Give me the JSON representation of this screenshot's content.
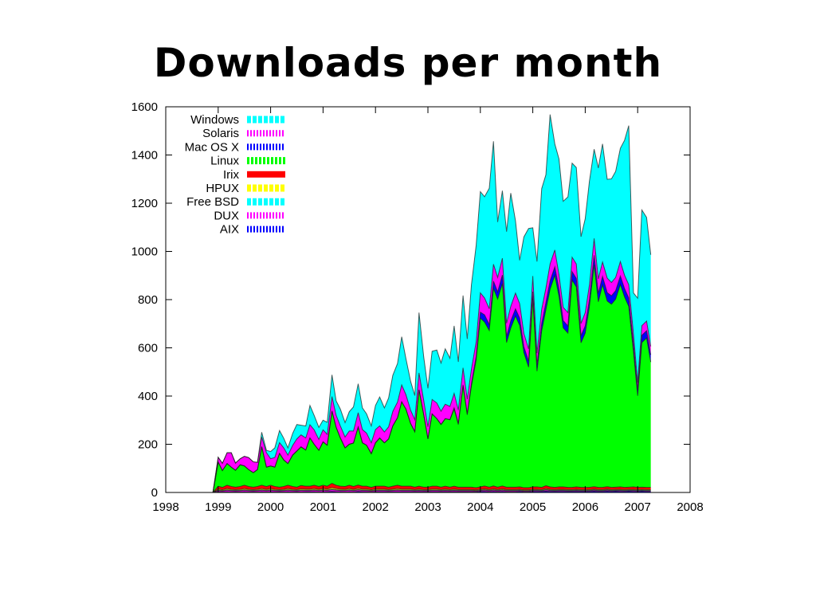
{
  "slide": {
    "title": "Downloads per month"
  },
  "chart_data": {
    "type": "area",
    "stacked": true,
    "title": "",
    "xlabel": "",
    "ylabel": "",
    "xlim": [
      1998,
      2008
    ],
    "ylim": [
      0,
      1600
    ],
    "x_ticks": [
      "1998",
      "1999",
      "2000",
      "2001",
      "2002",
      "2003",
      "2004",
      "2005",
      "2006",
      "2007",
      "2008"
    ],
    "y_ticks": [
      "0",
      "200",
      "400",
      "600",
      "800",
      "1000",
      "1200",
      "1400",
      "1600"
    ],
    "grid": false,
    "legend_position": "top-left",
    "x": [
      1998.9,
      1999.0,
      1999.08,
      1999.17,
      1999.25,
      1999.33,
      1999.42,
      1999.5,
      1999.58,
      1999.67,
      1999.75,
      1999.83,
      1999.92,
      2000.0,
      2000.08,
      2000.17,
      2000.25,
      2000.33,
      2000.42,
      2000.5,
      2000.58,
      2000.67,
      2000.75,
      2000.83,
      2000.92,
      2001.0,
      2001.08,
      2001.17,
      2001.25,
      2001.33,
      2001.42,
      2001.5,
      2001.58,
      2001.67,
      2001.75,
      2001.83,
      2001.92,
      2002.0,
      2002.08,
      2002.17,
      2002.25,
      2002.33,
      2002.42,
      2002.5,
      2002.58,
      2002.67,
      2002.75,
      2002.83,
      2002.92,
      2003.0,
      2003.08,
      2003.17,
      2003.25,
      2003.33,
      2003.42,
      2003.5,
      2003.58,
      2003.67,
      2003.75,
      2003.83,
      2003.92,
      2004.0,
      2004.08,
      2004.17,
      2004.25,
      2004.33,
      2004.42,
      2004.5,
      2004.58,
      2004.67,
      2004.75,
      2004.83,
      2004.92,
      2005.0,
      2005.08,
      2005.17,
      2005.25,
      2005.33,
      2005.42,
      2005.5,
      2005.58,
      2005.67,
      2005.75,
      2005.83,
      2005.92,
      2006.0,
      2006.08,
      2006.17,
      2006.25,
      2006.33,
      2006.42,
      2006.5,
      2006.58,
      2006.67,
      2006.75,
      2006.83,
      2006.92,
      2007.0,
      2007.08,
      2007.17,
      2007.25
    ],
    "series": [
      {
        "name": "AIX",
        "color": "#0000ff",
        "values": [
          0,
          3,
          2,
          3,
          2,
          3,
          2,
          3,
          2,
          3,
          2,
          3,
          2,
          3,
          2,
          3,
          2,
          3,
          2,
          3,
          2,
          3,
          3,
          3,
          2,
          3,
          3,
          4,
          3,
          3,
          2,
          3,
          2,
          4,
          3,
          3,
          2,
          3,
          3,
          3,
          3,
          3,
          3,
          3,
          3,
          3,
          3,
          3,
          3,
          3,
          3,
          3,
          3,
          3,
          3,
          3,
          3,
          3,
          3,
          3,
          3,
          4,
          4,
          3,
          4,
          3,
          4,
          3,
          3,
          3,
          4,
          3,
          3,
          4,
          4,
          4,
          5,
          4,
          4,
          4,
          4,
          4,
          4,
          4,
          4,
          4,
          4,
          5,
          4,
          4,
          5,
          4,
          5,
          4,
          4,
          5,
          4,
          4,
          5,
          4,
          4
        ]
      },
      {
        "name": "DUX",
        "color": "#ff00ff",
        "values": [
          0,
          5,
          4,
          6,
          5,
          4,
          5,
          6,
          5,
          4,
          5,
          6,
          5,
          6,
          5,
          4,
          5,
          6,
          5,
          4,
          6,
          5,
          5,
          6,
          5,
          6,
          5,
          7,
          6,
          5,
          5,
          6,
          5,
          6,
          5,
          5,
          4,
          5,
          5,
          5,
          4,
          5,
          6,
          5,
          5,
          5,
          4,
          5,
          4,
          4,
          5,
          5,
          4,
          5,
          4,
          5,
          4,
          4,
          4,
          4,
          3,
          4,
          5,
          4,
          5,
          4,
          5,
          4,
          4,
          4,
          4,
          3,
          3,
          4,
          4,
          3,
          5,
          4,
          3,
          4,
          4,
          3,
          3,
          4,
          3,
          3,
          3,
          4,
          3,
          3,
          4,
          3,
          3,
          4,
          3,
          3,
          4,
          3,
          3,
          3,
          3
        ]
      },
      {
        "name": "Free BSD",
        "color": "#00ffff",
        "values": [
          0,
          2,
          2,
          2,
          2,
          2,
          2,
          2,
          2,
          2,
          2,
          2,
          2,
          2,
          2,
          2,
          2,
          2,
          2,
          2,
          2,
          2,
          2,
          2,
          2,
          2,
          2,
          3,
          2,
          2,
          2,
          2,
          2,
          2,
          2,
          2,
          2,
          2,
          2,
          2,
          2,
          2,
          2,
          2,
          2,
          2,
          2,
          2,
          2,
          2,
          2,
          2,
          2,
          2,
          2,
          2,
          2,
          2,
          2,
          2,
          2,
          2,
          2,
          2,
          2,
          2,
          2,
          2,
          2,
          2,
          2,
          2,
          2,
          2,
          2,
          2,
          2,
          2,
          2,
          2,
          2,
          2,
          2,
          2,
          2,
          2,
          2,
          2,
          2,
          2,
          2,
          2,
          2,
          2,
          2,
          2,
          2,
          2,
          2,
          2,
          2
        ]
      },
      {
        "name": "HPUX",
        "color": "#ffff00",
        "values": [
          0,
          4,
          3,
          5,
          4,
          3,
          4,
          5,
          4,
          3,
          4,
          5,
          4,
          5,
          4,
          3,
          4,
          5,
          4,
          3,
          5,
          4,
          4,
          5,
          4,
          5,
          4,
          6,
          5,
          4,
          4,
          5,
          4,
          5,
          4,
          4,
          3,
          4,
          4,
          4,
          3,
          4,
          5,
          4,
          4,
          4,
          3,
          4,
          3,
          3,
          4,
          4,
          3,
          4,
          3,
          4,
          3,
          3,
          3,
          3,
          3,
          3,
          4,
          3,
          4,
          3,
          4,
          3,
          3,
          3,
          3,
          3,
          3,
          3,
          3,
          3,
          4,
          3,
          3,
          3,
          3,
          3,
          3,
          3,
          3,
          3,
          3,
          3,
          3,
          3,
          3,
          3,
          3,
          3,
          3,
          3,
          3,
          3,
          3,
          3,
          3
        ]
      },
      {
        "name": "Irix",
        "color": "#ff0000",
        "values": [
          0,
          12,
          10,
          14,
          12,
          10,
          12,
          14,
          12,
          10,
          12,
          14,
          12,
          14,
          12,
          10,
          12,
          14,
          12,
          10,
          14,
          12,
          12,
          14,
          12,
          14,
          12,
          18,
          14,
          12,
          12,
          14,
          12,
          14,
          12,
          12,
          10,
          12,
          12,
          12,
          10,
          12,
          14,
          12,
          12,
          12,
          10,
          12,
          10,
          10,
          12,
          12,
          10,
          12,
          10,
          12,
          10,
          10,
          10,
          10,
          9,
          10,
          12,
          10,
          12,
          10,
          12,
          10,
          10,
          10,
          10,
          9,
          9,
          10,
          10,
          9,
          12,
          10,
          9,
          10,
          10,
          9,
          9,
          10,
          9,
          9,
          9,
          10,
          9,
          9,
          10,
          9,
          9,
          10,
          9,
          9,
          10,
          9,
          9,
          9,
          9
        ]
      },
      {
        "name": "Linux",
        "color": "#00ff00",
        "values": [
          0,
          100,
          70,
          90,
          80,
          70,
          90,
          80,
          70,
          60,
          70,
          160,
          80,
          80,
          80,
          140,
          110,
          90,
          130,
          150,
          160,
          150,
          200,
          170,
          150,
          180,
          170,
          300,
          240,
          200,
          160,
          170,
          180,
          240,
          180,
          170,
          140,
          180,
          200,
          180,
          200,
          250,
          280,
          350,
          320,
          260,
          230,
          400,
          300,
          200,
          300,
          280,
          260,
          280,
          280,
          320,
          260,
          420,
          300,
          420,
          530,
          700,
          680,
          650,
          820,
          780,
          840,
          600,
          660,
          710,
          670,
          560,
          500,
          780,
          480,
          650,
          730,
          820,
          880,
          790,
          660,
          640,
          860,
          830,
          600,
          640,
          750,
          920,
          770,
          840,
          770,
          760,
          780,
          840,
          790,
          750,
          560,
          380,
          600,
          620,
          520
        ]
      },
      {
        "name": "Mac OS X",
        "color": "#0000ff",
        "values": [
          0,
          0,
          0,
          0,
          0,
          0,
          0,
          0,
          0,
          0,
          0,
          0,
          0,
          0,
          0,
          0,
          0,
          0,
          0,
          0,
          0,
          0,
          0,
          0,
          0,
          0,
          0,
          0,
          0,
          0,
          0,
          0,
          0,
          0,
          0,
          0,
          0,
          0,
          0,
          0,
          0,
          0,
          0,
          0,
          0,
          0,
          0,
          0,
          0,
          0,
          0,
          0,
          0,
          0,
          0,
          5,
          5,
          5,
          5,
          10,
          15,
          25,
          30,
          25,
          30,
          30,
          35,
          25,
          30,
          30,
          30,
          25,
          25,
          30,
          25,
          30,
          30,
          35,
          35,
          30,
          30,
          30,
          35,
          35,
          30,
          30,
          30,
          40,
          35,
          35,
          35,
          35,
          35,
          35,
          35,
          35,
          30,
          25,
          30,
          30,
          30
        ]
      },
      {
        "name": "Solaris",
        "color": "#ff00ff",
        "values": [
          0,
          20,
          30,
          45,
          60,
          30,
          25,
          40,
          50,
          45,
          30,
          40,
          60,
          30,
          40,
          45,
          50,
          35,
          40,
          50,
          50,
          50,
          55,
          60,
          45,
          50,
          45,
          60,
          50,
          50,
          45,
          55,
          50,
          60,
          55,
          50,
          45,
          55,
          50,
          45,
          50,
          60,
          65,
          70,
          60,
          55,
          50,
          70,
          60,
          50,
          60,
          65,
          55,
          60,
          55,
          60,
          55,
          70,
          60,
          60,
          60,
          80,
          70,
          65,
          70,
          60,
          70,
          55,
          60,
          65,
          60,
          55,
          50,
          65,
          50,
          60,
          60,
          70,
          70,
          60,
          55,
          55,
          60,
          60,
          50,
          55,
          60,
          70,
          60,
          60,
          60,
          55,
          55,
          60,
          55,
          55,
          45,
          30,
          40,
          40,
          35
        ]
      },
      {
        "name": "Windows",
        "color": "#00ffff",
        "values": [
          0,
          0,
          0,
          0,
          0,
          0,
          0,
          0,
          0,
          0,
          0,
          20,
          10,
          30,
          40,
          50,
          40,
          30,
          50,
          60,
          40,
          50,
          80,
          60,
          50,
          40,
          50,
          90,
          60,
          70,
          60,
          80,
          100,
          120,
          90,
          80,
          70,
          100,
          120,
          100,
          120,
          150,
          160,
          200,
          150,
          120,
          100,
          250,
          180,
          160,
          200,
          220,
          200,
          230,
          200,
          280,
          200,
          300,
          250,
          350,
          400,
          420,
          420,
          500,
          510,
          230,
          280,
          380,
          470,
          300,
          180,
          400,
          500,
          200,
          380,
          500,
          470,
          620,
          440,
          480,
          440,
          480,
          390,
          400,
          360,
          390,
          430,
          370,
          460,
          490,
          410,
          430,
          440,
          470,
          560,
          660,
          170,
          350,
          480,
          430,
          380
        ]
      }
    ],
    "legend": [
      {
        "label": "Windows",
        "color": "#00ffff",
        "pattern": "dash-wide"
      },
      {
        "label": "Solaris",
        "color": "#ff00ff",
        "pattern": "dash-thin"
      },
      {
        "label": "Mac OS X",
        "color": "#0000ff",
        "pattern": "dash-thin"
      },
      {
        "label": "Linux",
        "color": "#00ff00",
        "pattern": "dash-mid"
      },
      {
        "label": "Irix",
        "color": "#ff0000",
        "pattern": "solid"
      },
      {
        "label": "HPUX",
        "color": "#ffff00",
        "pattern": "dash-wide"
      },
      {
        "label": "Free BSD",
        "color": "#00ffff",
        "pattern": "dash-wide"
      },
      {
        "label": "DUX",
        "color": "#ff00ff",
        "pattern": "dash-thin"
      },
      {
        "label": "AIX",
        "color": "#0000ff",
        "pattern": "dash-thin"
      }
    ]
  }
}
